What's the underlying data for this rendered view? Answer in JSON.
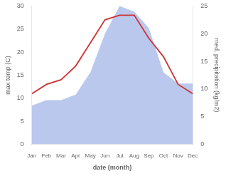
{
  "chart_data": {
    "type": "line",
    "categories": [
      "Jan",
      "Feb",
      "Mar",
      "Apr",
      "May",
      "Jun",
      "Jul",
      "Aug",
      "Sep",
      "Oct",
      "Nov",
      "Dec"
    ],
    "series": [
      {
        "type": "area",
        "color": "#bbc8ee",
        "axis": "y2",
        "values": [
          7,
          8,
          8,
          9,
          13,
          20,
          25,
          24,
          21,
          13,
          11,
          11
        ]
      },
      {
        "type": "line",
        "color": "#cc3333",
        "axis": "y",
        "values": [
          11,
          13,
          14,
          17,
          22,
          27,
          28,
          28,
          23,
          19,
          13,
          11
        ]
      }
    ],
    "xlabel": "date (month)",
    "ylabel": "max temp (C)",
    "y2label": "med. precipitation (kg/m2)",
    "ylim": [
      0,
      30
    ],
    "yticks": [
      0,
      5,
      10,
      15,
      20,
      25,
      30
    ],
    "y2lim": [
      0,
      25
    ],
    "y2ticks": [
      0,
      5,
      10,
      15,
      20,
      25
    ],
    "grid": false
  }
}
